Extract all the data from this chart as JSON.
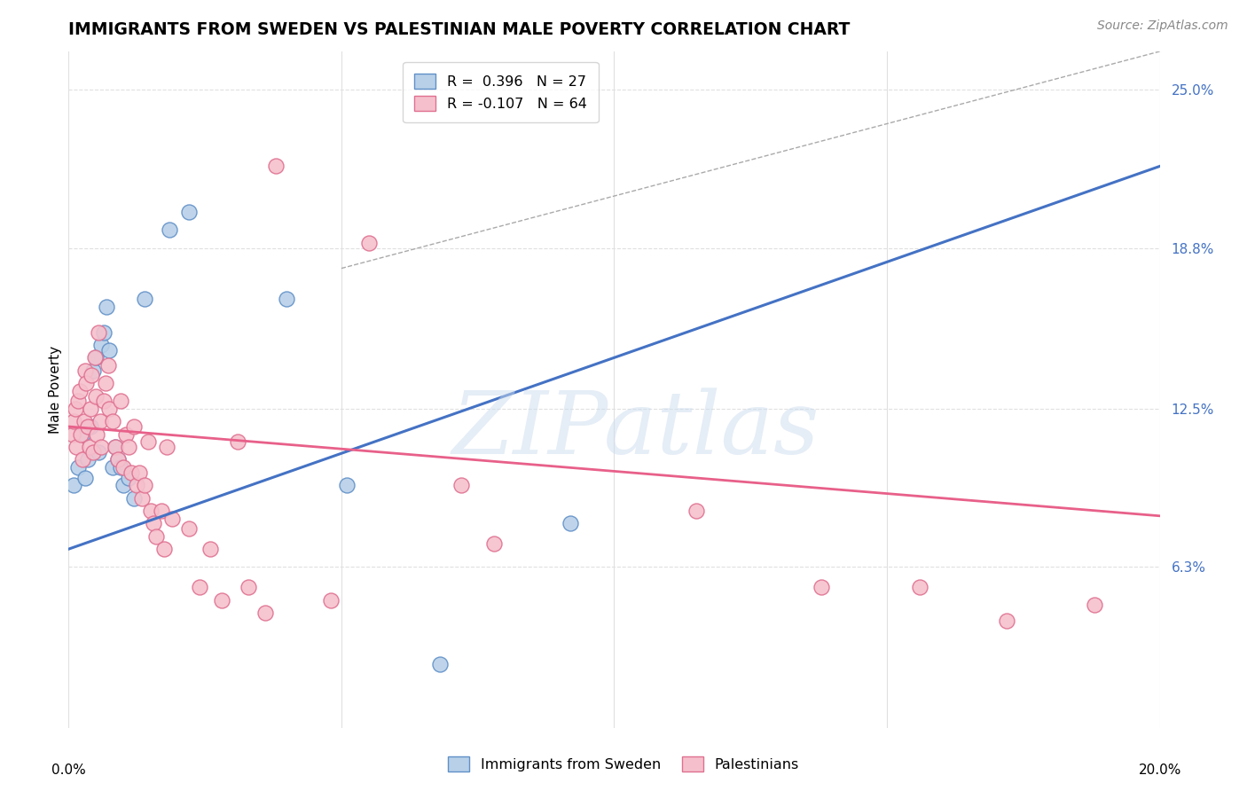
{
  "title": "IMMIGRANTS FROM SWEDEN VS PALESTINIAN MALE POVERTY CORRELATION CHART",
  "source": "Source: ZipAtlas.com",
  "ylabel": "Male Poverty",
  "watermark": "ZIPatlas",
  "blue_color": "#b8d0e8",
  "pink_color": "#f5c0cc",
  "blue_edge_color": "#6090c8",
  "pink_edge_color": "#e07090",
  "blue_line_color": "#4472c4",
  "pink_line_color": "#e8608a",
  "blue_scatter": [
    [
      0.001,
      0.095
    ],
    [
      0.0018,
      0.102
    ],
    [
      0.0025,
      0.115
    ],
    [
      0.003,
      0.098
    ],
    [
      0.0035,
      0.105
    ],
    [
      0.004,
      0.118
    ],
    [
      0.0045,
      0.14
    ],
    [
      0.005,
      0.145
    ],
    [
      0.0055,
      0.108
    ],
    [
      0.006,
      0.15
    ],
    [
      0.0065,
      0.155
    ],
    [
      0.007,
      0.165
    ],
    [
      0.0075,
      0.148
    ],
    [
      0.008,
      0.102
    ],
    [
      0.0085,
      0.11
    ],
    [
      0.009,
      0.105
    ],
    [
      0.0095,
      0.102
    ],
    [
      0.01,
      0.095
    ],
    [
      0.011,
      0.098
    ],
    [
      0.012,
      0.09
    ],
    [
      0.014,
      0.168
    ],
    [
      0.0185,
      0.195
    ],
    [
      0.022,
      0.202
    ],
    [
      0.04,
      0.168
    ],
    [
      0.051,
      0.095
    ],
    [
      0.068,
      0.025
    ],
    [
      0.092,
      0.08
    ]
  ],
  "pink_scatter": [
    [
      0.0008,
      0.115
    ],
    [
      0.001,
      0.12
    ],
    [
      0.0012,
      0.125
    ],
    [
      0.0014,
      0.11
    ],
    [
      0.0018,
      0.128
    ],
    [
      0.002,
      0.132
    ],
    [
      0.0022,
      0.115
    ],
    [
      0.0025,
      0.105
    ],
    [
      0.0028,
      0.12
    ],
    [
      0.003,
      0.14
    ],
    [
      0.0032,
      0.135
    ],
    [
      0.0035,
      0.118
    ],
    [
      0.0038,
      0.11
    ],
    [
      0.004,
      0.125
    ],
    [
      0.0042,
      0.138
    ],
    [
      0.0045,
      0.108
    ],
    [
      0.0048,
      0.145
    ],
    [
      0.005,
      0.13
    ],
    [
      0.0052,
      0.115
    ],
    [
      0.0055,
      0.155
    ],
    [
      0.0058,
      0.12
    ],
    [
      0.006,
      0.11
    ],
    [
      0.0065,
      0.128
    ],
    [
      0.0068,
      0.135
    ],
    [
      0.0072,
      0.142
    ],
    [
      0.0075,
      0.125
    ],
    [
      0.008,
      0.12
    ],
    [
      0.0085,
      0.11
    ],
    [
      0.009,
      0.105
    ],
    [
      0.0095,
      0.128
    ],
    [
      0.01,
      0.102
    ],
    [
      0.0105,
      0.115
    ],
    [
      0.011,
      0.11
    ],
    [
      0.0115,
      0.1
    ],
    [
      0.012,
      0.118
    ],
    [
      0.0125,
      0.095
    ],
    [
      0.013,
      0.1
    ],
    [
      0.0135,
      0.09
    ],
    [
      0.014,
      0.095
    ],
    [
      0.0145,
      0.112
    ],
    [
      0.015,
      0.085
    ],
    [
      0.0155,
      0.08
    ],
    [
      0.016,
      0.075
    ],
    [
      0.017,
      0.085
    ],
    [
      0.0175,
      0.07
    ],
    [
      0.018,
      0.11
    ],
    [
      0.019,
      0.082
    ],
    [
      0.022,
      0.078
    ],
    [
      0.024,
      0.055
    ],
    [
      0.026,
      0.07
    ],
    [
      0.028,
      0.05
    ],
    [
      0.031,
      0.112
    ],
    [
      0.033,
      0.055
    ],
    [
      0.036,
      0.045
    ],
    [
      0.038,
      0.22
    ],
    [
      0.048,
      0.05
    ],
    [
      0.055,
      0.19
    ],
    [
      0.115,
      0.085
    ],
    [
      0.138,
      0.055
    ],
    [
      0.156,
      0.055
    ],
    [
      0.172,
      0.042
    ],
    [
      0.188,
      0.048
    ],
    [
      0.072,
      0.095
    ],
    [
      0.078,
      0.072
    ]
  ],
  "xmin": 0.0,
  "xmax": 0.2,
  "ymin": 0.0,
  "ymax": 0.265,
  "yticks": [
    0.063,
    0.125,
    0.188,
    0.25
  ],
  "ytick_labels": [
    "6.3%",
    "12.5%",
    "18.8%",
    "25.0%"
  ],
  "xtick_labels": [
    "0.0%",
    "20.0%"
  ],
  "gridline_color": "#e0e0e0",
  "background_color": "#ffffff",
  "title_fontsize": 13.5,
  "axis_label_fontsize": 11,
  "tick_fontsize": 11,
  "source_fontsize": 10
}
